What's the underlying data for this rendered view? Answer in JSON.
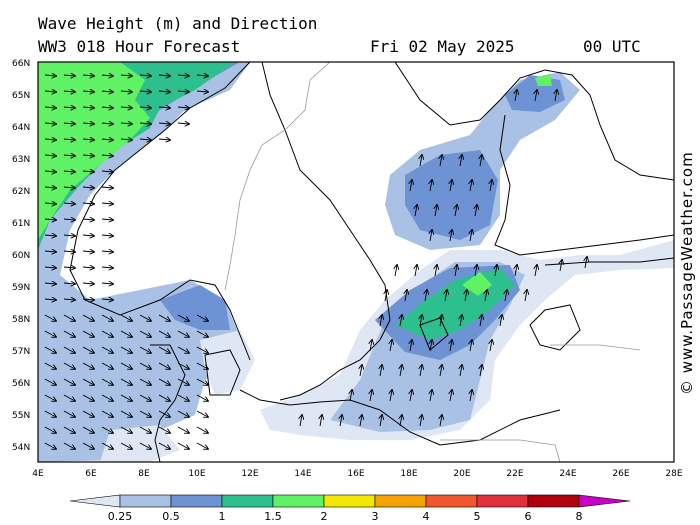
{
  "header": {
    "title_line1": "Wave Height (m) and Direction",
    "title_line2": "WW3 018 Hour Forecast",
    "date": "Fri 02 May 2025",
    "time": "00 UTC"
  },
  "map": {
    "lat_labels": [
      "66N",
      "65N",
      "64N",
      "63N",
      "62N",
      "61N",
      "60N",
      "59N",
      "58N",
      "57N",
      "56N",
      "55N",
      "54N"
    ],
    "lon_labels": [
      "4E",
      "6E",
      "8E",
      "10E",
      "12E",
      "14E",
      "16E",
      "18E",
      "20E",
      "22E",
      "24E",
      "26E",
      "28E"
    ],
    "land_color": "#ffffff",
    "sea_color": "#ffffff"
  },
  "legend": {
    "labels": [
      "0.25",
      "0.5",
      "1",
      "1.5",
      "2",
      "3",
      "4",
      "5",
      "6",
      "8"
    ],
    "colors": [
      "#dfe7f4",
      "#a9c1e4",
      "#6e93d4",
      "#2ebf8f",
      "#5ff265",
      "#f4e800",
      "#f5a300",
      "#f0572e",
      "#e0303e",
      "#b0000b",
      "#c800c8"
    ]
  },
  "credit": "© www.PassageWeather.com"
}
